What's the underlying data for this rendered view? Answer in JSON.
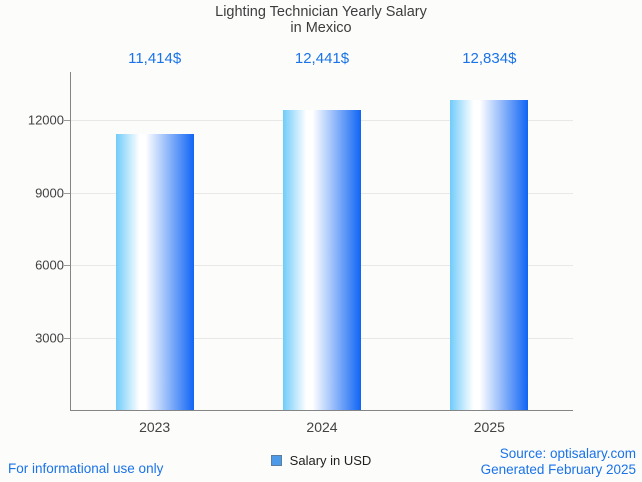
{
  "title": {
    "line1": "Lighting Technician Yearly Salary",
    "line2": "in Mexico"
  },
  "chart_data": {
    "type": "bar",
    "title": "Lighting Technician Yearly Salary in Mexico",
    "categories": [
      "2023",
      "2024",
      "2025"
    ],
    "series": [
      {
        "name": "Salary in USD",
        "values": [
          11414,
          12441,
          12834
        ]
      }
    ],
    "value_labels": [
      "11,414$",
      "12,441$",
      "12,834$"
    ],
    "xlabel": "",
    "ylabel": "",
    "ylim": [
      0,
      14000
    ],
    "yticks": [
      3000,
      6000,
      9000,
      12000
    ],
    "grid": true,
    "legend_position": "bottom"
  },
  "legend": {
    "label": "Salary in USD",
    "marker_fill": "#4d9be8",
    "marker_border": "#5a7da0"
  },
  "footer": {
    "left": "For informational use only",
    "source": "Source: optisalary.com",
    "generated": "Generated February 2025"
  },
  "colors": {
    "accent_blue": "#1a73e8",
    "title_text": "#3d3d3d",
    "axis_text": "#424242",
    "axis_line": "#858585",
    "gridline": "#e8e8e8",
    "background": "#fcfcfb",
    "bar_gradient_left": "#70cbfa",
    "bar_gradient_mid": "#ffffff",
    "bar_gradient_right": "#1065f4"
  }
}
